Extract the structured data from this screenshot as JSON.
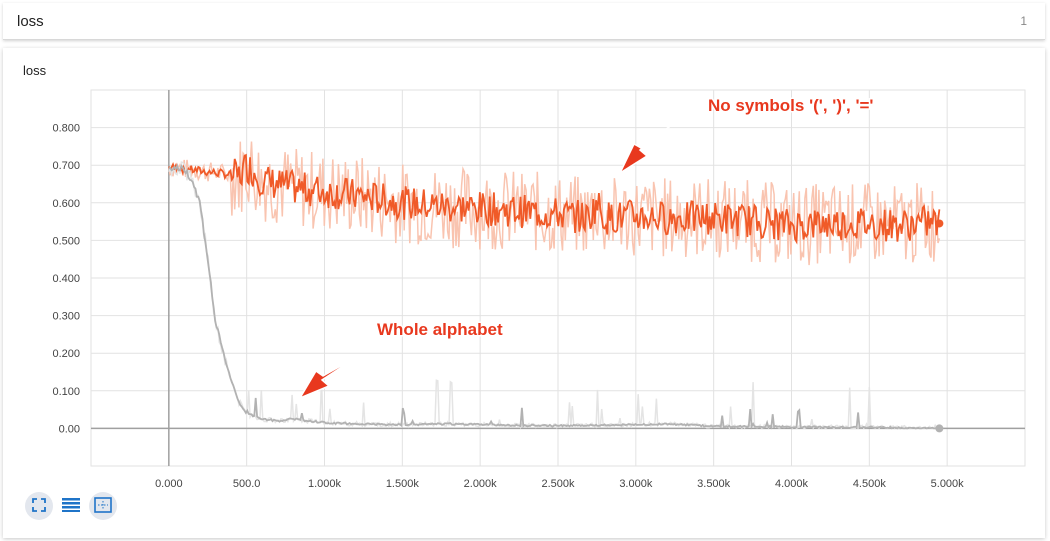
{
  "header": {
    "title": "loss",
    "count": "1"
  },
  "card": {
    "title": "loss"
  },
  "controls": [
    {
      "name": "expand-icon",
      "icon": "expand"
    },
    {
      "name": "list-icon",
      "icon": "lines"
    },
    {
      "name": "fit-domain-icon",
      "icon": "fit"
    }
  ],
  "colors": {
    "orange": "#f05a28",
    "orange_light": "#f9c4b0",
    "gray": "#b2b2b2",
    "gray_light": "#e4e4e4",
    "annotation": "#e8381e"
  },
  "chart_data": {
    "type": "line",
    "title": "loss",
    "xlabel": "",
    "ylabel": "",
    "xlim": [
      -500,
      5500
    ],
    "ylim": [
      -0.1,
      0.9
    ],
    "x_ticks": [
      0,
      500,
      1000,
      1500,
      2000,
      2500,
      3000,
      3500,
      4000,
      4500,
      5000
    ],
    "x_tick_labels": [
      "0.000",
      "500.0",
      "1.000k",
      "1.500k",
      "2.000k",
      "2.500k",
      "3.000k",
      "3.500k",
      "4.000k",
      "4.500k",
      "5.000k"
    ],
    "y_ticks": [
      0.0,
      0.1,
      0.2,
      0.3,
      0.4,
      0.5,
      0.6,
      0.7,
      0.8
    ],
    "y_tick_labels": [
      "0.00",
      "0.100",
      "0.200",
      "0.300",
      "0.400",
      "0.500",
      "0.600",
      "0.700",
      "0.800"
    ],
    "grid": true,
    "series": [
      {
        "x": [
          0,
          100,
          200,
          300,
          400,
          450,
          500,
          600,
          700,
          800,
          1000,
          1200,
          1500,
          1800,
          2000,
          2200,
          2500,
          2700,
          2750,
          2800,
          3000,
          3200,
          3500,
          3800,
          4000,
          4200,
          4500,
          4700,
          4900,
          4950
        ],
        "values": [
          0.695,
          0.69,
          0.685,
          0.68,
          0.675,
          0.67,
          0.7,
          0.66,
          0.65,
          0.64,
          0.63,
          0.62,
          0.6,
          0.59,
          0.585,
          0.58,
          0.57,
          0.56,
          0.6,
          0.56,
          0.565,
          0.56,
          0.56,
          0.55,
          0.54,
          0.545,
          0.545,
          0.54,
          0.55,
          0.545
        ],
        "color": "#f05a28"
      },
      {
        "x": [
          0,
          100,
          150,
          200,
          250,
          300,
          350,
          400,
          450,
          500,
          600,
          700,
          800,
          1000,
          1200,
          1500,
          1800,
          2000,
          2200,
          2500,
          3000,
          3200,
          3500,
          4000,
          4500,
          4950
        ],
        "values": [
          0.695,
          0.69,
          0.66,
          0.6,
          0.45,
          0.28,
          0.2,
          0.13,
          0.07,
          0.04,
          0.025,
          0.02,
          0.025,
          0.015,
          0.012,
          0.01,
          0.012,
          0.01,
          0.008,
          0.007,
          0.01,
          0.012,
          0.006,
          0.004,
          0.003,
          0.0
        ],
        "color": "#a8a8a8"
      }
    ],
    "annotations": [
      {
        "text": "No symbols '(', ')', '='",
        "color": "#e8381e"
      },
      {
        "text": "Whole alphabet",
        "color": "#e8381e"
      }
    ]
  }
}
